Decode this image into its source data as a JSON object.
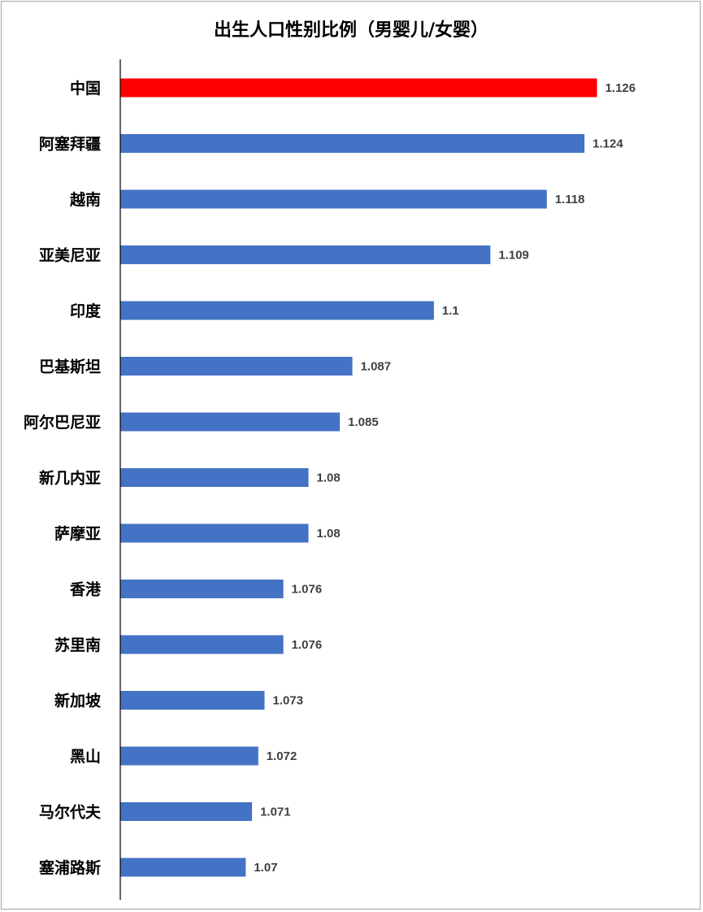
{
  "chart_data": {
    "type": "bar",
    "orientation": "horizontal",
    "title": "出生人口性别比例（男婴儿/女婴）",
    "categories": [
      "中国",
      "阿塞拜疆",
      "越南",
      "亚美尼亚",
      "印度",
      "巴基斯坦",
      "阿尔巴尼亚",
      "新几内亚",
      "萨摩亚",
      "香港",
      "苏里南",
      "新加坡",
      "黑山",
      "马尔代夫",
      "塞浦路斯"
    ],
    "values": [
      1.126,
      1.124,
      1.118,
      1.109,
      1.1,
      1.087,
      1.085,
      1.08,
      1.08,
      1.076,
      1.076,
      1.073,
      1.072,
      1.071,
      1.07
    ],
    "value_labels": [
      "1.126",
      "1.124",
      "1.118",
      "1.109",
      "1.1",
      "1.087",
      "1.085",
      "1.08",
      "1.08",
      "1.076",
      "1.076",
      "1.073",
      "1.072",
      "1.071",
      "1.07"
    ],
    "highlight_index": 0,
    "xlim": [
      1.05,
      1.128
    ],
    "grid": false,
    "legend": "none",
    "colors": {
      "bar": "#4472C4",
      "highlight": "#FF0000",
      "label": "#404040",
      "highlight_label": "#FF0000",
      "axis": "#000000"
    }
  }
}
